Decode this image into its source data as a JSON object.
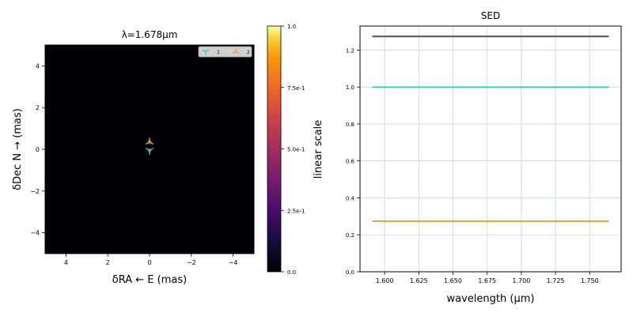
{
  "image_panel": {
    "type": "heatmap",
    "title": "λ=1.678μm",
    "xlabel": "δRA ← E (mas)",
    "ylabel": "δDec N → (mas)",
    "xlim": [
      5,
      -5
    ],
    "ylim": [
      -5,
      5
    ],
    "xticks": [
      4,
      2,
      0,
      -2,
      -4
    ],
    "yticks": [
      4,
      2,
      0,
      -2,
      -4
    ],
    "xtick_labels": [
      "4",
      "2",
      "0",
      "−2",
      "−4"
    ],
    "ytick_labels": [
      "4",
      "2",
      "0",
      "−2",
      "−4"
    ],
    "background_color": "#000004",
    "colormap": "inferno",
    "sources": [
      {
        "label": "1",
        "marker": "tri-down",
        "color": "#2ddc9a",
        "x": 0.0,
        "y": -0.05
      },
      {
        "label": "2",
        "marker": "tri-up",
        "color": "#f0a02a",
        "x": 0.0,
        "y": 0.35
      }
    ],
    "legend_placement": "top-right",
    "colorbar": {
      "label": "linear scale",
      "range": [
        0.0,
        1.0
      ],
      "ticks": [
        0.0,
        0.25,
        0.5,
        0.75,
        1.0
      ],
      "tick_labels": [
        "0.0",
        "2.5e-1",
        "5.0e-1",
        "7.5e-1",
        "1.0"
      ]
    }
  },
  "chart_data": {
    "type": "line",
    "title": "SED",
    "xlabel": "wavelength (μm)",
    "ylabel": "",
    "xlim": [
      1.582,
      1.773
    ],
    "ylim": [
      0.0,
      1.33
    ],
    "grid": true,
    "xticks": [
      1.6,
      1.625,
      1.65,
      1.675,
      1.7,
      1.725,
      1.75
    ],
    "xtick_labels": [
      "1.600",
      "1.625",
      "1.650",
      "1.675",
      "1.700",
      "1.725",
      "1.750"
    ],
    "yticks": [
      0.0,
      0.2,
      0.4,
      0.6,
      0.8,
      1.0,
      1.2
    ],
    "ytick_labels": [
      "0.0",
      "0.2",
      "0.4",
      "0.6",
      "0.8",
      "1.0",
      "1.2"
    ],
    "series": [
      {
        "color": "#666666",
        "x": [
          1.591,
          1.764
        ],
        "values": [
          1.274,
          1.274
        ]
      },
      {
        "color": "#2ddc9a",
        "x": [
          1.591,
          1.764
        ],
        "values": [
          1.0,
          1.0
        ]
      },
      {
        "color": "#e8900c",
        "x": [
          1.591,
          1.764
        ],
        "values": [
          0.274,
          0.274
        ]
      }
    ]
  }
}
